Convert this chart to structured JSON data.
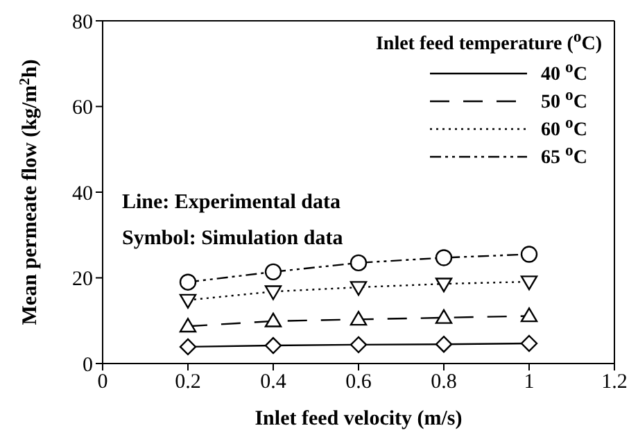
{
  "chart_data": {
    "type": "line",
    "xlabel": "Inlet feed velocity (m/s)",
    "ylabel": "Mean permeate flow (kg/m$^{2}$h)",
    "legend_title": "Inlet feed temperature ($^{o}$C)",
    "legend": "top right",
    "grid": false,
    "x": [
      0.2,
      0.4,
      0.6,
      0.8,
      1
    ],
    "xlim": [
      0,
      1.2
    ],
    "xticks": [
      0,
      0.2,
      0.4,
      0.6,
      0.8,
      1,
      1.2
    ],
    "ylim": [
      0,
      80
    ],
    "yticks": [
      0,
      20,
      40,
      60,
      80
    ],
    "annotations": [
      "Line: Experimental data",
      "Symbol: Simulation data"
    ],
    "series": [
      {
        "name": "40 $^{o}$C",
        "color": "#000000",
        "line_style": "solid",
        "marker": "diamond",
        "values": [
          3.9,
          4.2,
          4.4,
          4.5,
          4.7
        ]
      },
      {
        "name": "50 $^{o}$C",
        "color": "#000000",
        "line_style": "dashed",
        "marker": "triangle",
        "values": [
          8.7,
          9.9,
          10.3,
          10.7,
          11.1
        ]
      },
      {
        "name": "60 $^{o}$C",
        "color": "#000000",
        "line_style": "dotted",
        "marker": "triangle-down",
        "values": [
          14.8,
          16.8,
          17.8,
          18.6,
          19.1
        ]
      },
      {
        "name": "65 $^{o}$C",
        "color": "#000000",
        "line_style": "dashdot",
        "marker": "circle",
        "values": [
          19.0,
          21.4,
          23.5,
          24.7,
          25.5
        ]
      }
    ]
  }
}
